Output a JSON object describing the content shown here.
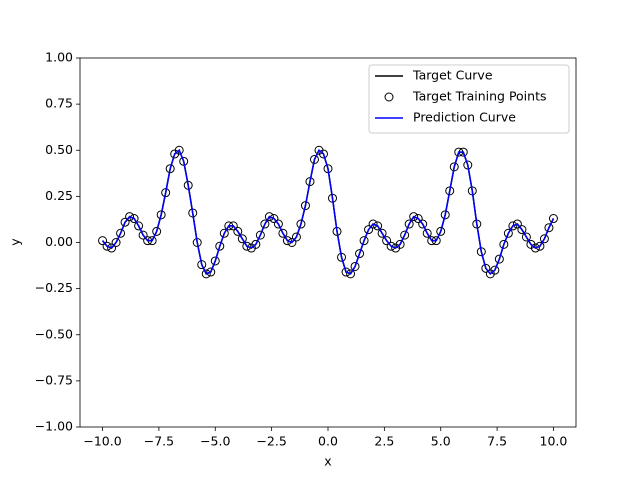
{
  "chart_data": {
    "type": "line",
    "x_label": "x",
    "y_label": "y",
    "xlim": [
      -11,
      11
    ],
    "ylim": [
      -1,
      1
    ],
    "xticks": [
      {
        "value": -10,
        "label": "−10.0"
      },
      {
        "value": -7.5,
        "label": "−7.5"
      },
      {
        "value": -5,
        "label": "−5.0"
      },
      {
        "value": -2.5,
        "label": "−2.5"
      },
      {
        "value": 0,
        "label": "0.0"
      },
      {
        "value": 2.5,
        "label": "2.5"
      },
      {
        "value": 5,
        "label": "5.0"
      },
      {
        "value": 7.5,
        "label": "7.5"
      },
      {
        "value": 10,
        "label": "10.0"
      }
    ],
    "yticks": [
      {
        "value": -1,
        "label": "−1.00"
      },
      {
        "value": -0.75,
        "label": "−0.75"
      },
      {
        "value": -0.5,
        "label": "−0.50"
      },
      {
        "value": -0.25,
        "label": "−0.25"
      },
      {
        "value": 0,
        "label": "0.00"
      },
      {
        "value": 0.25,
        "label": "0.25"
      },
      {
        "value": 0.5,
        "label": "0.50"
      },
      {
        "value": 0.75,
        "label": "0.75"
      },
      {
        "value": 1,
        "label": "1.00"
      }
    ],
    "legend": "upper right",
    "x": [
      -10,
      -9.8,
      -9.6,
      -9.4,
      -9.2,
      -9,
      -8.8,
      -8.6,
      -8.4,
      -8.2,
      -8,
      -7.8,
      -7.6,
      -7.4,
      -7.2,
      -7,
      -6.8,
      -6.6,
      -6.4,
      -6.2,
      -6,
      -5.8,
      -5.6,
      -5.4,
      -5.2,
      -5,
      -4.8,
      -4.6,
      -4.4,
      -4.2,
      -4,
      -3.8,
      -3.6,
      -3.4,
      -3.2,
      -3,
      -2.8,
      -2.6,
      -2.4,
      -2.2,
      -2,
      -1.8,
      -1.6,
      -1.4,
      -1.2,
      -1,
      -0.8,
      -0.6,
      -0.4,
      -0.2,
      0,
      0.2,
      0.4,
      0.6,
      0.8,
      1,
      1.2,
      1.4,
      1.6,
      1.8,
      2,
      2.2,
      2.4,
      2.6,
      2.8,
      3,
      3.2,
      3.4,
      3.6,
      3.8,
      4,
      4.2,
      4.4,
      4.6,
      4.8,
      5,
      5.2,
      5.4,
      5.6,
      5.8,
      6,
      6.2,
      6.4,
      6.6,
      6.8,
      7,
      7.2,
      7.4,
      7.6,
      7.8,
      8,
      8.2,
      8.4,
      8.6,
      8.8,
      9,
      9.2,
      9.4,
      9.6,
      9.8,
      10
    ],
    "series": [
      {
        "name": "Target Curve",
        "style": "line",
        "color": "#000000",
        "values": [
          0.01,
          -0.02,
          -0.03,
          0,
          0.05,
          0.11,
          0.14,
          0.13,
          0.09,
          0.04,
          0.01,
          0.01,
          0.06,
          0.15,
          0.27,
          0.4,
          0.48,
          0.5,
          0.44,
          0.31,
          0.16,
          0,
          -0.12,
          -0.17,
          -0.16,
          -0.1,
          -0.02,
          0.05,
          0.09,
          0.09,
          0.06,
          0.02,
          -0.02,
          -0.03,
          -0.01,
          0.04,
          0.1,
          0.14,
          0.13,
          0.1,
          0.05,
          0.01,
          0,
          0.03,
          0.1,
          0.2,
          0.33,
          0.45,
          0.5,
          0.48,
          0.4,
          0.24,
          0.06,
          -0.08,
          -0.16,
          -0.17,
          -0.13,
          -0.06,
          0.01,
          0.07,
          0.1,
          0.09,
          0.05,
          0.01,
          -0.02,
          -0.03,
          -0.01,
          0.04,
          0.1,
          0.14,
          0.13,
          0.1,
          0.05,
          0.01,
          0.01,
          0.06,
          0.15,
          0.28,
          0.41,
          0.49,
          0.49,
          0.42,
          0.28,
          0.1,
          -0.05,
          -0.14,
          -0.17,
          -0.15,
          -0.09,
          -0.01,
          0.05,
          0.09,
          0.1,
          0.07,
          0.03,
          -0.01,
          -0.03,
          -0.02,
          0.02,
          0.08,
          0.13
        ]
      },
      {
        "name": "Target Training Points",
        "style": "points",
        "color": "#000000",
        "values": [
          0.01,
          -0.02,
          -0.03,
          0,
          0.05,
          0.11,
          0.14,
          0.13,
          0.09,
          0.04,
          0.01,
          0.01,
          0.06,
          0.15,
          0.27,
          0.4,
          0.48,
          0.5,
          0.44,
          0.31,
          0.16,
          0,
          -0.12,
          -0.17,
          -0.16,
          -0.1,
          -0.02,
          0.05,
          0.09,
          0.09,
          0.06,
          0.02,
          -0.02,
          -0.03,
          -0.01,
          0.04,
          0.1,
          0.14,
          0.13,
          0.1,
          0.05,
          0.01,
          0,
          0.03,
          0.1,
          0.2,
          0.33,
          0.45,
          0.5,
          0.48,
          0.4,
          0.24,
          0.06,
          -0.08,
          -0.16,
          -0.17,
          -0.13,
          -0.06,
          0.01,
          0.07,
          0.1,
          0.09,
          0.05,
          0.01,
          -0.02,
          -0.03,
          -0.01,
          0.04,
          0.1,
          0.14,
          0.13,
          0.1,
          0.05,
          0.01,
          0.01,
          0.06,
          0.15,
          0.28,
          0.41,
          0.49,
          0.49,
          0.42,
          0.28,
          0.1,
          -0.05,
          -0.14,
          -0.17,
          -0.15,
          -0.09,
          -0.01,
          0.05,
          0.09,
          0.1,
          0.07,
          0.03,
          -0.01,
          -0.03,
          -0.02,
          0.02,
          0.08,
          0.13
        ]
      },
      {
        "name": "Prediction Curve",
        "style": "line",
        "color": "#0000ff",
        "values": [
          0.01,
          -0.02,
          -0.03,
          0,
          0.05,
          0.11,
          0.14,
          0.13,
          0.09,
          0.04,
          0.01,
          0.01,
          0.06,
          0.15,
          0.27,
          0.4,
          0.48,
          0.5,
          0.44,
          0.31,
          0.16,
          0,
          -0.12,
          -0.17,
          -0.16,
          -0.1,
          -0.02,
          0.05,
          0.09,
          0.09,
          0.06,
          0.02,
          -0.02,
          -0.03,
          -0.01,
          0.04,
          0.1,
          0.14,
          0.13,
          0.1,
          0.05,
          0.01,
          0,
          0.03,
          0.1,
          0.2,
          0.33,
          0.45,
          0.5,
          0.48,
          0.4,
          0.24,
          0.06,
          -0.08,
          -0.16,
          -0.17,
          -0.13,
          -0.06,
          0.01,
          0.07,
          0.1,
          0.09,
          0.05,
          0.01,
          -0.02,
          -0.03,
          -0.01,
          0.04,
          0.1,
          0.14,
          0.13,
          0.1,
          0.05,
          0.01,
          0.01,
          0.06,
          0.15,
          0.28,
          0.41,
          0.49,
          0.49,
          0.42,
          0.28,
          0.1,
          -0.05,
          -0.14,
          -0.17,
          -0.15,
          -0.09,
          -0.01,
          0.05,
          0.09,
          0.1,
          0.07,
          0.03,
          -0.01,
          -0.03,
          -0.02,
          0.02,
          0.08,
          0.13
        ]
      }
    ]
  }
}
